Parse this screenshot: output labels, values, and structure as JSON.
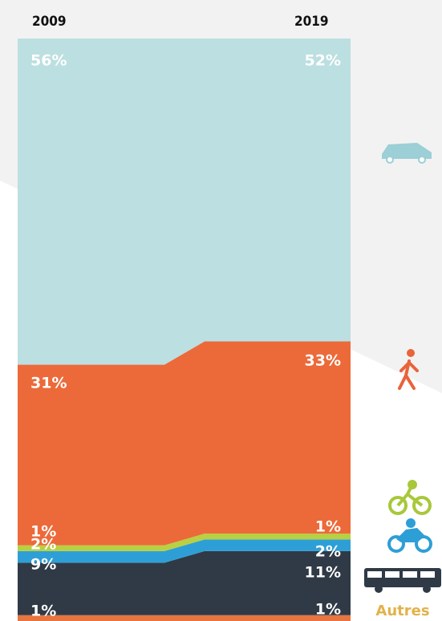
{
  "chart_data": {
    "type": "stacked_area",
    "x": [
      "2009",
      "2019"
    ],
    "ylim": [
      0,
      100
    ],
    "series": [
      {
        "name": "Autres",
        "color": "#e8743f",
        "values": [
          1,
          1
        ],
        "value_labels": [
          "1%",
          "1%"
        ]
      },
      {
        "color": "#2f3a46",
        "values": [
          9,
          11
        ],
        "value_labels": [
          "9%",
          "11%"
        ]
      },
      {
        "color": "#2e9fd6",
        "values": [
          2,
          2
        ],
        "value_labels": [
          "2%",
          "2%"
        ]
      },
      {
        "color": "#b8d041",
        "values": [
          1,
          1
        ],
        "value_labels": [
          "1%",
          "1%"
        ]
      },
      {
        "color": "#ec6a3a",
        "values": [
          31,
          33
        ],
        "value_labels": [
          "31%",
          "33%"
        ]
      },
      {
        "color": "#bcdfe1",
        "values": [
          56,
          52
        ],
        "value_labels": [
          "56%",
          "52%"
        ]
      }
    ]
  }
}
